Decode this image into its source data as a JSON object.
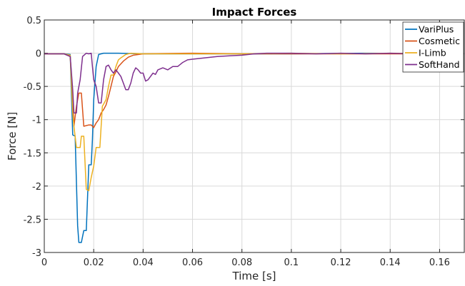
{
  "chart_data": {
    "type": "line",
    "title": "Impact Forces",
    "xlabel": "Time [s]",
    "ylabel": "Force [N]",
    "xlim": [
      0,
      0.17
    ],
    "ylim": [
      -3,
      0.5
    ],
    "xticks": [
      0,
      0.02,
      0.04,
      0.06,
      0.08,
      0.1,
      0.12,
      0.14,
      0.16
    ],
    "yticks": [
      -3,
      -2.5,
      -2,
      -1.5,
      -1,
      -0.5,
      0,
      0.5
    ],
    "grid": true,
    "legend_position": "top-right",
    "series": [
      {
        "name": "VariPlus",
        "color": "#0072BD",
        "points": [
          [
            0,
            -0.01
          ],
          [
            0.004,
            -0.01
          ],
          [
            0.008,
            -0.01
          ],
          [
            0.0105,
            -0.02
          ],
          [
            0.0115,
            -1.23
          ],
          [
            0.0125,
            -1.25
          ],
          [
            0.0135,
            -2.6
          ],
          [
            0.014,
            -2.85
          ],
          [
            0.015,
            -2.85
          ],
          [
            0.016,
            -2.67
          ],
          [
            0.017,
            -2.67
          ],
          [
            0.018,
            -1.68
          ],
          [
            0.019,
            -1.68
          ],
          [
            0.0195,
            -1.3
          ],
          [
            0.02,
            -0.7
          ],
          [
            0.021,
            -0.2
          ],
          [
            0.022,
            -0.02
          ],
          [
            0.024,
            0.0
          ],
          [
            0.03,
            0.0
          ],
          [
            0.04,
            -0.01
          ],
          [
            0.06,
            -0.01
          ],
          [
            0.08,
            -0.01
          ],
          [
            0.1,
            -0.01
          ],
          [
            0.13,
            0.0
          ],
          [
            0.17,
            -0.01
          ]
        ]
      },
      {
        "name": "Cosmetic",
        "color": "#D95319",
        "points": [
          [
            0,
            -0.01
          ],
          [
            0.008,
            -0.01
          ],
          [
            0.0105,
            -0.05
          ],
          [
            0.0115,
            -0.65
          ],
          [
            0.012,
            -1.1
          ],
          [
            0.013,
            -0.8
          ],
          [
            0.014,
            -0.6
          ],
          [
            0.015,
            -0.6
          ],
          [
            0.016,
            -1.1
          ],
          [
            0.018,
            -1.08
          ],
          [
            0.019,
            -1.08
          ],
          [
            0.02,
            -1.12
          ],
          [
            0.021,
            -1.05
          ],
          [
            0.022,
            -1.0
          ],
          [
            0.023,
            -0.9
          ],
          [
            0.024,
            -0.85
          ],
          [
            0.025,
            -0.78
          ],
          [
            0.026,
            -0.65
          ],
          [
            0.027,
            -0.5
          ],
          [
            0.028,
            -0.35
          ],
          [
            0.029,
            -0.28
          ],
          [
            0.03,
            -0.2
          ],
          [
            0.032,
            -0.12
          ],
          [
            0.034,
            -0.06
          ],
          [
            0.036,
            -0.03
          ],
          [
            0.04,
            -0.01
          ],
          [
            0.06,
            0.0
          ],
          [
            0.08,
            -0.01
          ],
          [
            0.1,
            -0.01
          ],
          [
            0.13,
            -0.01
          ],
          [
            0.17,
            -0.01
          ]
        ]
      },
      {
        "name": "I-Limb",
        "color": "#EDB120",
        "points": [
          [
            0,
            -0.01
          ],
          [
            0.008,
            -0.01
          ],
          [
            0.0105,
            -0.03
          ],
          [
            0.0115,
            -0.9
          ],
          [
            0.012,
            -1.1
          ],
          [
            0.013,
            -1.42
          ],
          [
            0.0145,
            -1.42
          ],
          [
            0.015,
            -1.25
          ],
          [
            0.016,
            -1.25
          ],
          [
            0.017,
            -2.05
          ],
          [
            0.018,
            -2.07
          ],
          [
            0.019,
            -1.87
          ],
          [
            0.02,
            -1.7
          ],
          [
            0.021,
            -1.42
          ],
          [
            0.0225,
            -1.42
          ],
          [
            0.0235,
            -0.8
          ],
          [
            0.025,
            -0.7
          ],
          [
            0.026,
            -0.5
          ],
          [
            0.027,
            -0.33
          ],
          [
            0.028,
            -0.33
          ],
          [
            0.029,
            -0.2
          ],
          [
            0.03,
            -0.1
          ],
          [
            0.031,
            -0.07
          ],
          [
            0.033,
            -0.02
          ],
          [
            0.035,
            0.0
          ],
          [
            0.04,
            -0.01
          ],
          [
            0.06,
            -0.01
          ],
          [
            0.08,
            -0.01
          ],
          [
            0.1,
            0.0
          ],
          [
            0.12,
            -0.01
          ],
          [
            0.14,
            0.0
          ],
          [
            0.17,
            -0.01
          ]
        ]
      },
      {
        "name": "SoftHand",
        "color": "#7E2F8E",
        "points": [
          [
            0,
            -0.01
          ],
          [
            0.008,
            -0.01
          ],
          [
            0.0105,
            -0.05
          ],
          [
            0.0115,
            -0.55
          ],
          [
            0.012,
            -0.9
          ],
          [
            0.013,
            -0.9
          ],
          [
            0.0135,
            -0.6
          ],
          [
            0.0145,
            -0.4
          ],
          [
            0.0155,
            -0.05
          ],
          [
            0.017,
            0.0
          ],
          [
            0.018,
            -0.01
          ],
          [
            0.019,
            0.0
          ],
          [
            0.0195,
            -0.2
          ],
          [
            0.02,
            -0.4
          ],
          [
            0.021,
            -0.5
          ],
          [
            0.022,
            -0.75
          ],
          [
            0.023,
            -0.75
          ],
          [
            0.024,
            -0.4
          ],
          [
            0.025,
            -0.2
          ],
          [
            0.026,
            -0.18
          ],
          [
            0.027,
            -0.25
          ],
          [
            0.028,
            -0.3
          ],
          [
            0.029,
            -0.25
          ],
          [
            0.03,
            -0.3
          ],
          [
            0.031,
            -0.35
          ],
          [
            0.032,
            -0.45
          ],
          [
            0.033,
            -0.55
          ],
          [
            0.034,
            -0.55
          ],
          [
            0.035,
            -0.45
          ],
          [
            0.036,
            -0.3
          ],
          [
            0.037,
            -0.22
          ],
          [
            0.038,
            -0.25
          ],
          [
            0.039,
            -0.3
          ],
          [
            0.04,
            -0.3
          ],
          [
            0.041,
            -0.42
          ],
          [
            0.042,
            -0.4
          ],
          [
            0.043,
            -0.35
          ],
          [
            0.044,
            -0.3
          ],
          [
            0.045,
            -0.32
          ],
          [
            0.046,
            -0.25
          ],
          [
            0.048,
            -0.22
          ],
          [
            0.05,
            -0.25
          ],
          [
            0.052,
            -0.2
          ],
          [
            0.054,
            -0.2
          ],
          [
            0.056,
            -0.14
          ],
          [
            0.058,
            -0.1
          ],
          [
            0.06,
            -0.09
          ],
          [
            0.065,
            -0.07
          ],
          [
            0.07,
            -0.05
          ],
          [
            0.075,
            -0.04
          ],
          [
            0.08,
            -0.03
          ],
          [
            0.085,
            -0.01
          ],
          [
            0.09,
            0.0
          ],
          [
            0.1,
            0.0
          ],
          [
            0.11,
            -0.01
          ],
          [
            0.12,
            0.0
          ],
          [
            0.13,
            -0.01
          ],
          [
            0.14,
            0.0
          ],
          [
            0.15,
            -0.01
          ],
          [
            0.16,
            0.0
          ],
          [
            0.17,
            -0.01
          ]
        ]
      }
    ]
  }
}
